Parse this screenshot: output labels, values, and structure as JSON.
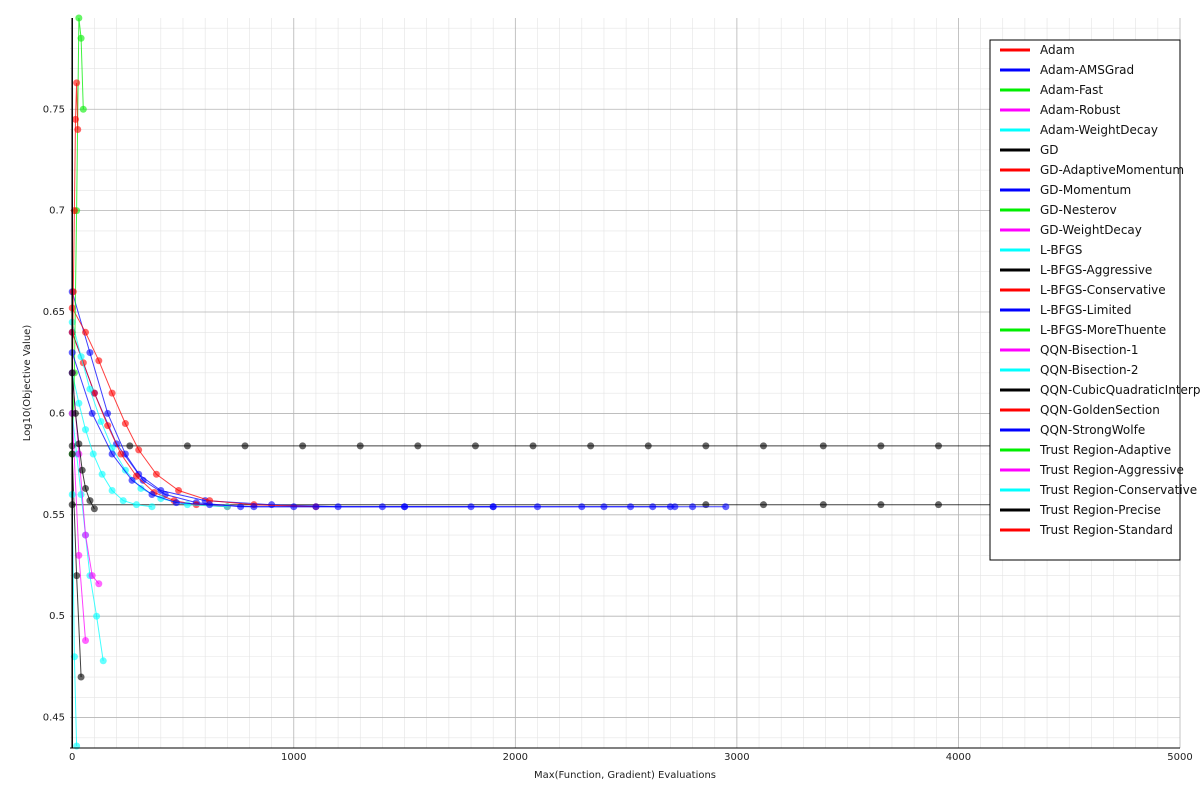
{
  "chart_data": {
    "type": "line",
    "title": "",
    "xlabel": "Max(Function, Gradient) Evaluations",
    "ylabel": "Log10(Objective Value)",
    "xlim": [
      -10,
      5000
    ],
    "ylim": [
      0.435,
      0.795
    ],
    "x_ticks": [
      0,
      1000,
      2000,
      3000,
      4000,
      5000
    ],
    "y_ticks": [
      0.45,
      0.5,
      0.55,
      0.6,
      0.65,
      0.7,
      0.75
    ],
    "grid": true,
    "minor_grid": true,
    "legend_position": "top-right",
    "series": [
      {
        "name": "Adam",
        "color": "#ff0000"
      },
      {
        "name": "Adam-AMSGrad",
        "color": "#0000ff"
      },
      {
        "name": "Adam-Fast",
        "color": "#00ee00"
      },
      {
        "name": "Adam-Robust",
        "color": "#ff00ff"
      },
      {
        "name": "Adam-WeightDecay",
        "color": "#00ffff"
      },
      {
        "name": "GD",
        "color": "#000000"
      },
      {
        "name": "GD-AdaptiveMomentum",
        "color": "#ff0000"
      },
      {
        "name": "GD-Momentum",
        "color": "#0000ff"
      },
      {
        "name": "GD-Nesterov",
        "color": "#00ee00"
      },
      {
        "name": "GD-WeightDecay",
        "color": "#ff00ff"
      },
      {
        "name": "L-BFGS",
        "color": "#00ffff"
      },
      {
        "name": "L-BFGS-Aggressive",
        "color": "#000000"
      },
      {
        "name": "L-BFGS-Conservative",
        "color": "#ff0000"
      },
      {
        "name": "L-BFGS-Limited",
        "color": "#0000ff"
      },
      {
        "name": "L-BFGS-MoreThuente",
        "color": "#00ee00"
      },
      {
        "name": "QQN-Bisection-1",
        "color": "#ff00ff"
      },
      {
        "name": "QQN-Bisection-2",
        "color": "#00ffff"
      },
      {
        "name": "QQN-CubicQuadraticInterpolation",
        "color": "#000000"
      },
      {
        "name": "QQN-GoldenSection",
        "color": "#ff0000"
      },
      {
        "name": "QQN-StrongWolfe",
        "color": "#0000ff"
      },
      {
        "name": "Trust Region-Adaptive",
        "color": "#00ee00"
      },
      {
        "name": "Trust Region-Aggressive",
        "color": "#ff00ff"
      },
      {
        "name": "Trust Region-Conservative",
        "color": "#00ffff"
      },
      {
        "name": "Trust Region-Precise",
        "color": "#000000"
      },
      {
        "name": "Trust Region-Standard",
        "color": "#ff0000"
      }
    ],
    "traces": [
      {
        "color": "#000000",
        "x": [
          0,
          260,
          520,
          780,
          1040,
          1300,
          1560,
          1820,
          2080,
          2340,
          2600,
          2860,
          3120,
          3390,
          3650,
          3910,
          4170,
          4430,
          4690,
          4950
        ],
        "y": [
          0.584,
          0.584,
          0.584,
          0.584,
          0.584,
          0.584,
          0.584,
          0.584,
          0.584,
          0.584,
          0.584,
          0.584,
          0.584,
          0.584,
          0.584,
          0.584,
          0.584,
          0.584,
          0.584,
          0.584
        ]
      },
      {
        "color": "#000000",
        "x": [
          0,
          2860,
          3120,
          3390,
          3650,
          3910,
          4170,
          4430,
          4690,
          4950
        ],
        "y": [
          0.555,
          0.555,
          0.555,
          0.555,
          0.555,
          0.555,
          0.555,
          0.555,
          0.555,
          0.555
        ]
      },
      {
        "color": "#0000ff",
        "x": [
          0,
          100,
          200,
          300,
          400,
          600,
          900,
          1200,
          1500,
          1800,
          2100,
          2400,
          2700,
          2800,
          2950
        ],
        "y": [
          0.64,
          0.61,
          0.585,
          0.57,
          0.562,
          0.557,
          0.555,
          0.554,
          0.554,
          0.554,
          0.554,
          0.554,
          0.554,
          0.554,
          0.554
        ]
      },
      {
        "color": "#0000ff",
        "x": [
          0,
          80,
          160,
          240,
          320,
          420,
          560,
          760,
          1000,
          1400,
          1900,
          2300,
          2520,
          2620,
          2720
        ],
        "y": [
          0.66,
          0.63,
          0.6,
          0.58,
          0.567,
          0.56,
          0.556,
          0.554,
          0.554,
          0.554,
          0.554,
          0.554,
          0.554,
          0.554,
          0.554
        ]
      },
      {
        "color": "#ff0000",
        "x": [
          0,
          60,
          120,
          180,
          240,
          300,
          380,
          480,
          620,
          820,
          1100
        ],
        "y": [
          0.652,
          0.64,
          0.626,
          0.61,
          0.595,
          0.582,
          0.57,
          0.562,
          0.557,
          0.555,
          0.554
        ]
      },
      {
        "color": "#ff0000",
        "x": [
          0,
          50,
          100,
          160,
          220,
          290,
          370,
          460,
          560,
          700
        ],
        "y": [
          0.64,
          0.625,
          0.61,
          0.594,
          0.58,
          0.569,
          0.561,
          0.557,
          0.555,
          0.554
        ]
      },
      {
        "color": "#00ffff",
        "x": [
          0,
          40,
          80,
          130,
          180,
          240,
          310,
          400,
          520,
          700
        ],
        "y": [
          0.645,
          0.628,
          0.612,
          0.596,
          0.583,
          0.572,
          0.563,
          0.558,
          0.555,
          0.554
        ]
      },
      {
        "color": "#00ffff",
        "x": [
          0,
          30,
          60,
          95,
          135,
          180,
          230,
          290,
          360
        ],
        "y": [
          0.62,
          0.605,
          0.592,
          0.58,
          0.57,
          0.562,
          0.557,
          0.555,
          0.554
        ]
      },
      {
        "color": "#00ee00",
        "x": [
          0,
          10,
          20,
          30,
          40,
          50
        ],
        "y": [
          0.58,
          0.62,
          0.7,
          0.795,
          0.785,
          0.75
        ]
      },
      {
        "color": "#ff0000",
        "x": [
          0,
          5,
          10,
          15,
          20,
          25
        ],
        "y": [
          0.6,
          0.66,
          0.7,
          0.745,
          0.763,
          0.74
        ]
      },
      {
        "color": "#00ffff",
        "x": [
          0,
          20,
          40,
          60,
          80,
          110,
          140
        ],
        "y": [
          0.6,
          0.58,
          0.56,
          0.54,
          0.52,
          0.5,
          0.478
        ]
      },
      {
        "color": "#ff00ff",
        "x": [
          0,
          30,
          60,
          90,
          120
        ],
        "y": [
          0.62,
          0.58,
          0.54,
          0.52,
          0.516
        ]
      },
      {
        "color": "#ff00ff",
        "x": [
          0,
          30,
          60
        ],
        "y": [
          0.6,
          0.53,
          0.488
        ]
      },
      {
        "color": "#000000",
        "x": [
          0,
          20,
          40
        ],
        "y": [
          0.58,
          0.52,
          0.47
        ]
      },
      {
        "color": "#00ffff",
        "x": [
          0,
          10,
          20
        ],
        "y": [
          0.56,
          0.48,
          0.436
        ]
      },
      {
        "color": "#0000ff",
        "x": [
          0,
          90,
          180,
          270,
          360,
          470,
          620,
          820,
          1100,
          1500,
          1900
        ],
        "y": [
          0.63,
          0.6,
          0.58,
          0.567,
          0.56,
          0.556,
          0.555,
          0.554,
          0.554,
          0.554,
          0.554
        ]
      },
      {
        "color": "#000000",
        "x": [
          0,
          15,
          30,
          45,
          60,
          80,
          100
        ],
        "y": [
          0.62,
          0.6,
          0.585,
          0.572,
          0.563,
          0.557,
          0.553
        ]
      }
    ]
  }
}
